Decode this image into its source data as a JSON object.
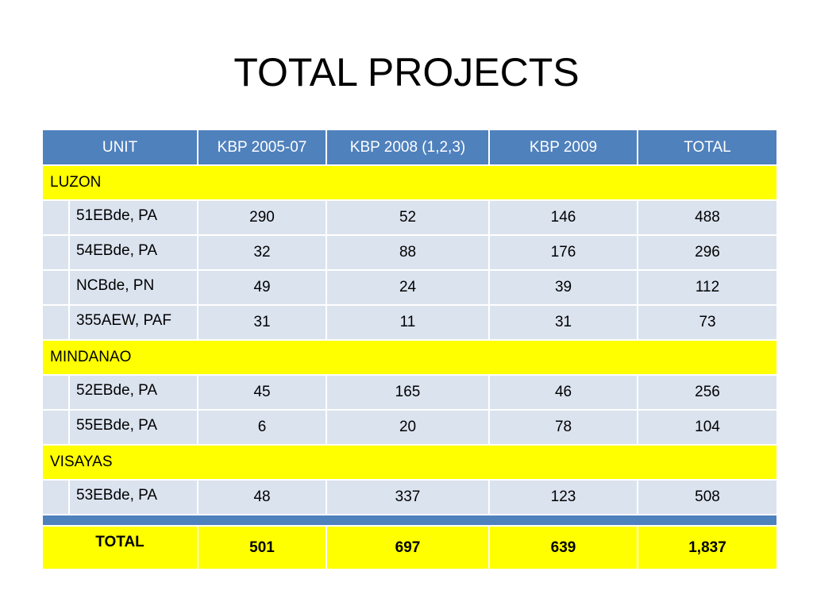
{
  "title": "TOTAL PROJECTS",
  "header": {
    "unit": "UNIT",
    "col1": "KBP 2005-07",
    "col2": "KBP 2008 (1,2,3)",
    "col3": "KBP 2009",
    "col4": "TOTAL"
  },
  "groups": [
    {
      "name": "LUZON",
      "rows": [
        {
          "unit": "51EBde, PA",
          "v1": "290",
          "v2": "52",
          "v3": "146",
          "total": "488"
        },
        {
          "unit": "54EBde, PA",
          "v1": "32",
          "v2": "88",
          "v3": "176",
          "total": "296"
        },
        {
          "unit": "NCBde, PN",
          "v1": "49",
          "v2": "24",
          "v3": "39",
          "total": "112"
        },
        {
          "unit": "355AEW, PAF",
          "v1": "31",
          "v2": "11",
          "v3": "31",
          "total": "73"
        }
      ]
    },
    {
      "name": "MINDANAO",
      "rows": [
        {
          "unit": "52EBde, PA",
          "v1": "45",
          "v2": "165",
          "v3": "46",
          "total": "256"
        },
        {
          "unit": "55EBde, PA",
          "v1": "6",
          "v2": "20",
          "v3": "78",
          "total": "104"
        }
      ]
    },
    {
      "name": "VISAYAS",
      "rows": [
        {
          "unit": "53EBde, PA",
          "v1": "48",
          "v2": "337",
          "v3": "123",
          "total": "508"
        }
      ]
    }
  ],
  "totals": {
    "label": "TOTAL",
    "v1": "501",
    "v2": "697",
    "v3": "639",
    "total": "1,837"
  },
  "colors": {
    "header_bg": "#4f81bd",
    "group_bg": "#ffff00",
    "row_bg": "#dbe3ef"
  }
}
